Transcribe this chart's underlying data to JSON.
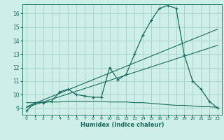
{
  "xlabel": "Humidex (Indice chaleur)",
  "background_color": "#ceeee8",
  "grid_color": "#aad4ce",
  "line_color": "#1a6b5e",
  "xlim_min": -0.5,
  "xlim_max": 23.5,
  "ylim_min": 8.5,
  "ylim_max": 16.7,
  "xticks": [
    0,
    1,
    2,
    3,
    4,
    5,
    6,
    7,
    8,
    9,
    10,
    11,
    12,
    13,
    14,
    15,
    16,
    17,
    18,
    19,
    20,
    21,
    22,
    23
  ],
  "yticks": [
    9,
    10,
    11,
    12,
    13,
    14,
    15,
    16
  ],
  "main_y": [
    8.8,
    9.4,
    9.4,
    9.5,
    10.2,
    10.4,
    10.0,
    9.9,
    9.8,
    9.8,
    12.0,
    11.1,
    11.5,
    13.0,
    14.4,
    15.5,
    16.4,
    16.6,
    16.4,
    12.9,
    11.0,
    10.4,
    9.5,
    9.0
  ],
  "line1_y": [
    9.1,
    9.35,
    9.6,
    9.85,
    10.1,
    10.35,
    10.6,
    10.85,
    11.1,
    11.35,
    11.6,
    11.85,
    12.1,
    12.35,
    12.6,
    12.85,
    13.1,
    13.35,
    13.6,
    13.85,
    14.1,
    14.35,
    14.6,
    14.85
  ],
  "line2_y": [
    9.05,
    9.25,
    9.45,
    9.65,
    9.85,
    10.05,
    10.25,
    10.45,
    10.65,
    10.85,
    11.05,
    11.25,
    11.45,
    11.65,
    11.85,
    12.05,
    12.25,
    12.45,
    12.65,
    12.85,
    13.05,
    13.25,
    13.45,
    13.65
  ],
  "line3_y": [
    9.4,
    9.4,
    9.45,
    9.45,
    9.45,
    9.5,
    9.5,
    9.5,
    9.5,
    9.5,
    9.45,
    9.45,
    9.45,
    9.4,
    9.4,
    9.35,
    9.3,
    9.25,
    9.2,
    9.2,
    9.15,
    9.1,
    9.1,
    9.05
  ]
}
